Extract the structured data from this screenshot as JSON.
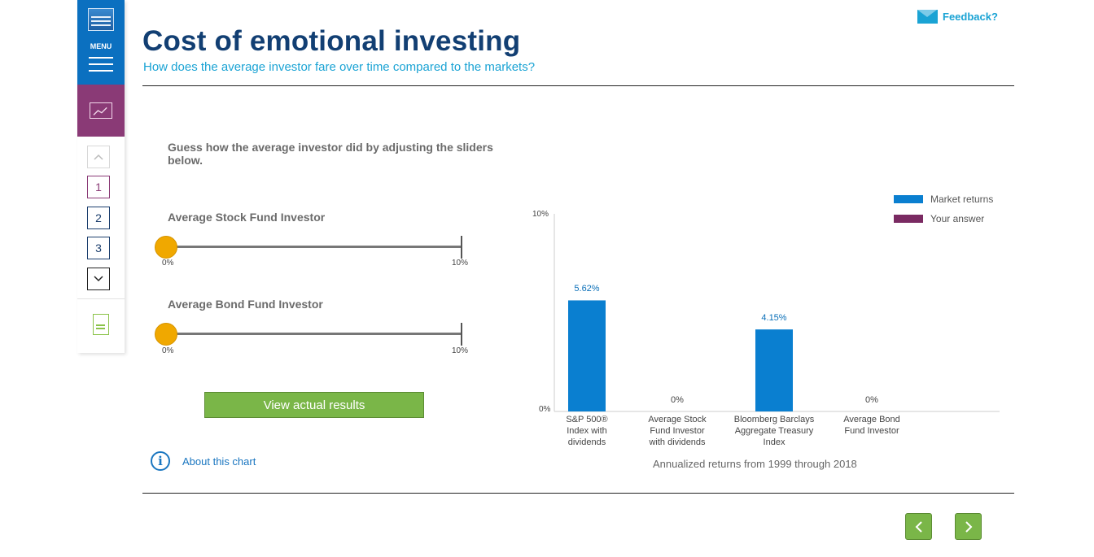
{
  "sidebar": {
    "menu_label": "MENU",
    "nav": [
      "1",
      "2",
      "3"
    ]
  },
  "header": {
    "feedback": "Feedback?",
    "title_light": "Cost of ",
    "title_bold": "emotional investing",
    "subtitle": "How does the average investor fare over time compared to the markets?"
  },
  "controls": {
    "instruction": "Guess how the average investor did by adjusting the sliders below.",
    "sliders": [
      {
        "label": "Average Stock Fund Investor",
        "min_label": "0%",
        "max_label": "10%",
        "value": 0
      },
      {
        "label": "Average Bond Fund Investor",
        "min_label": "0%",
        "max_label": "10%",
        "value": 0
      }
    ],
    "view_results": "View actual results",
    "about": "About this chart"
  },
  "chart_data": {
    "type": "bar",
    "categories": [
      "S&P 500® Index with dividends",
      "Average Stock Fund Investor with dividends",
      "Bloomberg Barclays Aggregate Treasury Index",
      "Average Bond Fund Investor"
    ],
    "category_lines": [
      [
        "S&P 500®",
        "Index with",
        "dividends"
      ],
      [
        "Average Stock",
        "Fund Investor",
        "with dividends"
      ],
      [
        "Bloomberg Barclays",
        "Aggregate Treasury",
        "Index"
      ],
      [
        "Average Bond",
        "Fund Investor"
      ]
    ],
    "series": [
      {
        "name": "Market returns",
        "color": "#0a7fd0",
        "values": [
          5.62,
          null,
          4.15,
          null
        ]
      },
      {
        "name": "Your answer",
        "color": "#7a2a62",
        "values": [
          null,
          0,
          null,
          0
        ]
      }
    ],
    "data_labels": [
      "5.62%",
      "0%",
      "4.15%",
      "0%"
    ],
    "ylim": [
      0,
      10
    ],
    "yticks": [
      "0%",
      "10%"
    ],
    "caption": "Annualized returns from 1999 through 2018",
    "legend_position": "top-right"
  }
}
